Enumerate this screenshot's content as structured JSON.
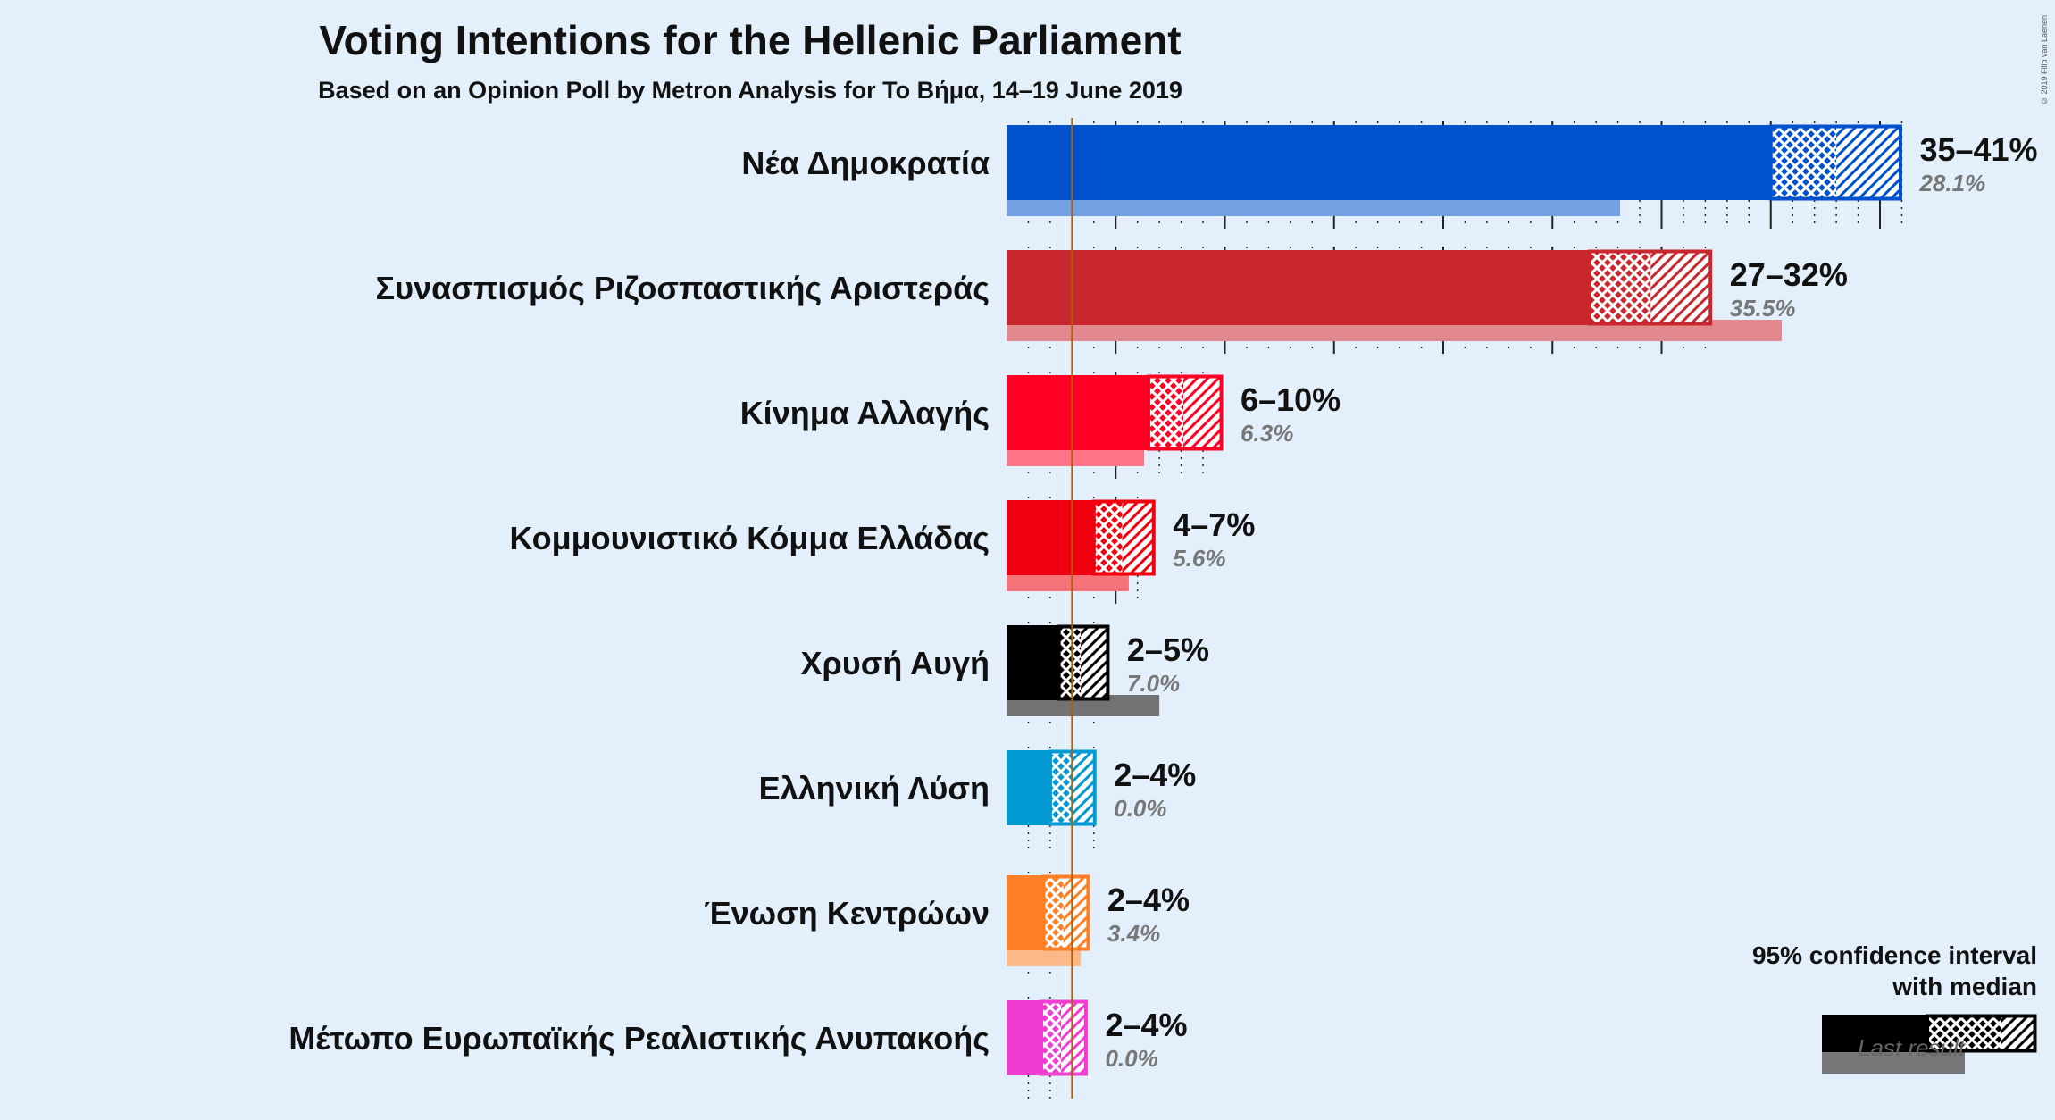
{
  "title": "Voting Intentions for the Hellenic Parliament",
  "subtitle": "Based on an Opinion Poll by Metron Analysis for To Βήμα, 14–19 June 2019",
  "copyright": "© 2019 Filip van Laenen",
  "legend": {
    "line1": "95% confidence interval",
    "line2": "with median",
    "last_result": "Last result"
  },
  "chart_data": {
    "type": "bar",
    "orientation": "horizontal",
    "title": "Voting Intentions for the Hellenic Parliament",
    "subtitle": "Based on an Opinion Poll by Metron Analysis for To Βήμα, 14–19 June 2019",
    "xlim": [
      0,
      42
    ],
    "threshold": 3,
    "series_fields": [
      "ci_low",
      "median",
      "ci_high",
      "last_result"
    ],
    "parties": [
      {
        "name": "Νέα Δημοκρατία",
        "color": "#0052cc",
        "ci_low": 35,
        "median": 38,
        "ci_high": 41,
        "range_label": "35–41%",
        "last_result": 28.1,
        "last_label": "28.1%"
      },
      {
        "name": "Συνασπισμός Ριζοσπαστικής Αριστεράς",
        "color": "#c8282d",
        "ci_low": 26.7,
        "median": 29.5,
        "ci_high": 32.3,
        "range_label": "27–32%",
        "last_result": 35.5,
        "last_label": "35.5%"
      },
      {
        "name": "Κίνημα Αλλαγής",
        "color": "#ff0024",
        "ci_low": 6.5,
        "median": 8.1,
        "ci_high": 9.9,
        "range_label": "6–10%",
        "last_result": 6.3,
        "last_label": "6.3%"
      },
      {
        "name": "Κομμουνιστικό Κόμμα Ελλάδας",
        "color": "#f0000e",
        "ci_low": 4.0,
        "median": 5.3,
        "ci_high": 6.8,
        "range_label": "4–7%",
        "last_result": 5.6,
        "last_label": "5.6%"
      },
      {
        "name": "Χρυσή Αυγή",
        "color": "#000000",
        "ci_low": 2.4,
        "median": 3.4,
        "ci_high": 4.7,
        "range_label": "2–5%",
        "last_result": 7.0,
        "last_label": "7.0%"
      },
      {
        "name": "Ελληνική Λύση",
        "color": "#0099d4",
        "ci_low": 2.0,
        "median": 3.0,
        "ci_high": 4.1,
        "range_label": "2–4%",
        "last_result": 0.0,
        "last_label": "0.0%"
      },
      {
        "name": "Ένωση Κεντρώων",
        "color": "#ff7f27",
        "ci_low": 1.7,
        "median": 2.6,
        "ci_high": 3.8,
        "range_label": "2–4%",
        "last_result": 3.4,
        "last_label": "3.4%"
      },
      {
        "name": "Μέτωπο Ευρωπαϊκής Ρεαλιστικής Ανυπακοής",
        "color": "#f03cd0",
        "ci_low": 1.6,
        "median": 2.5,
        "ci_high": 3.7,
        "range_label": "2–4%",
        "last_result": 0.0,
        "last_label": "0.0%"
      }
    ]
  }
}
